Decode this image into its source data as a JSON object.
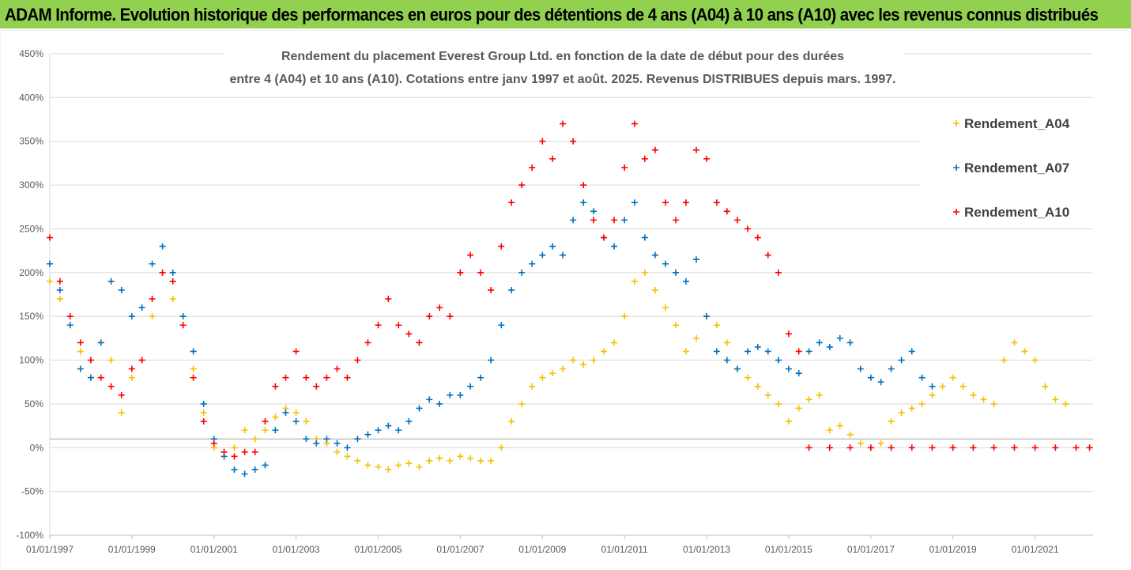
{
  "banner": {
    "title": "ADAM Informe. Evolution historique des performances en euros pour des détentions de 4 ans (A04) à 10 ans (A10) avec les revenus connus distribués",
    "background": "#92d050"
  },
  "chart_data": {
    "type": "scatter",
    "title_line1": "Rendement du placement Everest Group Ltd. en fonction de la date de début pour des durées",
    "title_line2": "entre 4 (A04) et 10 ans (A10). Cotations entre janv 1997 et août. 2025. Revenus DISTRIBUES depuis mars. 1997.",
    "xlabel": "",
    "ylabel": "",
    "x_range": [
      "1997-01-01",
      "2022-06-01"
    ],
    "y_range": [
      -100,
      450
    ],
    "y_step": 50,
    "y_unit": "%",
    "x_ticks": [
      "01/01/1997",
      "01/01/1999",
      "01/01/2001",
      "01/01/2003",
      "01/01/2005",
      "01/01/2007",
      "01/01/2009",
      "01/01/2011",
      "01/01/2013",
      "01/01/2015",
      "01/01/2017",
      "01/01/2019",
      "01/01/2021"
    ],
    "grid": "horizontal",
    "legend_position": "right",
    "marker": "+",
    "series": [
      {
        "name": "Rendement_A04",
        "color": "#f5c000",
        "points": [
          [
            "1997-01-01",
            190
          ],
          [
            "1997-04-01",
            170
          ],
          [
            "1997-07-01",
            140
          ],
          [
            "1997-10-01",
            110
          ],
          [
            "1998-01-01",
            80
          ],
          [
            "1998-04-01",
            120
          ],
          [
            "1998-07-01",
            100
          ],
          [
            "1998-10-01",
            40
          ],
          [
            "1999-01-01",
            80
          ],
          [
            "1999-04-01",
            100
          ],
          [
            "1999-07-01",
            150
          ],
          [
            "1999-10-01",
            200
          ],
          [
            "2000-01-01",
            170
          ],
          [
            "2000-04-01",
            140
          ],
          [
            "2000-07-01",
            90
          ],
          [
            "2000-10-01",
            40
          ],
          [
            "2001-01-01",
            0
          ],
          [
            "2001-04-01",
            -10
          ],
          [
            "2001-07-01",
            0
          ],
          [
            "2001-10-01",
            20
          ],
          [
            "2002-01-01",
            10
          ],
          [
            "2002-04-01",
            20
          ],
          [
            "2002-07-01",
            35
          ],
          [
            "2002-10-01",
            45
          ],
          [
            "2003-01-01",
            40
          ],
          [
            "2003-04-01",
            30
          ],
          [
            "2003-07-01",
            10
          ],
          [
            "2003-10-01",
            5
          ],
          [
            "2004-01-01",
            -5
          ],
          [
            "2004-04-01",
            -10
          ],
          [
            "2004-07-01",
            -15
          ],
          [
            "2004-10-01",
            -20
          ],
          [
            "2005-01-01",
            -22
          ],
          [
            "2005-04-01",
            -25
          ],
          [
            "2005-07-01",
            -20
          ],
          [
            "2005-10-01",
            -18
          ],
          [
            "2006-01-01",
            -22
          ],
          [
            "2006-04-01",
            -15
          ],
          [
            "2006-07-01",
            -12
          ],
          [
            "2006-10-01",
            -15
          ],
          [
            "2007-01-01",
            -10
          ],
          [
            "2007-04-01",
            -12
          ],
          [
            "2007-07-01",
            -15
          ],
          [
            "2007-10-01",
            -15
          ],
          [
            "2008-01-01",
            0
          ],
          [
            "2008-04-01",
            30
          ],
          [
            "2008-07-01",
            50
          ],
          [
            "2008-10-01",
            70
          ],
          [
            "2009-01-01",
            80
          ],
          [
            "2009-04-01",
            85
          ],
          [
            "2009-07-01",
            90
          ],
          [
            "2009-10-01",
            100
          ],
          [
            "2010-01-01",
            95
          ],
          [
            "2010-04-01",
            100
          ],
          [
            "2010-07-01",
            110
          ],
          [
            "2010-10-01",
            120
          ],
          [
            "2011-01-01",
            150
          ],
          [
            "2011-04-01",
            190
          ],
          [
            "2011-07-01",
            200
          ],
          [
            "2011-10-01",
            180
          ],
          [
            "2012-01-01",
            160
          ],
          [
            "2012-04-01",
            140
          ],
          [
            "2012-07-01",
            110
          ],
          [
            "2012-10-01",
            125
          ],
          [
            "2013-01-01",
            150
          ],
          [
            "2013-04-01",
            140
          ],
          [
            "2013-07-01",
            120
          ],
          [
            "2013-10-01",
            90
          ],
          [
            "2014-01-01",
            80
          ],
          [
            "2014-04-01",
            70
          ],
          [
            "2014-07-01",
            60
          ],
          [
            "2014-10-01",
            50
          ],
          [
            "2015-01-01",
            30
          ],
          [
            "2015-04-01",
            45
          ],
          [
            "2015-07-01",
            55
          ],
          [
            "2015-10-01",
            60
          ],
          [
            "2016-01-01",
            20
          ],
          [
            "2016-04-01",
            25
          ],
          [
            "2016-07-01",
            15
          ],
          [
            "2016-10-01",
            5
          ],
          [
            "2017-01-01",
            0
          ],
          [
            "2017-04-01",
            5
          ],
          [
            "2017-07-01",
            30
          ],
          [
            "2017-10-01",
            40
          ],
          [
            "2018-01-01",
            45
          ],
          [
            "2018-04-01",
            50
          ],
          [
            "2018-07-01",
            60
          ],
          [
            "2018-10-01",
            70
          ],
          [
            "2019-01-01",
            80
          ],
          [
            "2019-04-01",
            70
          ],
          [
            "2019-07-01",
            60
          ],
          [
            "2019-10-01",
            55
          ],
          [
            "2020-01-01",
            50
          ],
          [
            "2020-04-01",
            100
          ],
          [
            "2020-07-01",
            120
          ],
          [
            "2020-10-01",
            110
          ],
          [
            "2021-01-01",
            100
          ],
          [
            "2021-04-01",
            70
          ],
          [
            "2021-07-01",
            55
          ],
          [
            "2021-10-01",
            50
          ]
        ]
      },
      {
        "name": "Rendement_A07",
        "color": "#0070c0",
        "points": [
          [
            "1997-01-01",
            210
          ],
          [
            "1997-04-01",
            180
          ],
          [
            "1997-07-01",
            140
          ],
          [
            "1997-10-01",
            90
          ],
          [
            "1998-01-01",
            80
          ],
          [
            "1998-04-01",
            120
          ],
          [
            "1998-07-01",
            190
          ],
          [
            "1998-10-01",
            180
          ],
          [
            "1999-01-01",
            150
          ],
          [
            "1999-04-01",
            160
          ],
          [
            "1999-07-01",
            210
          ],
          [
            "1999-10-01",
            230
          ],
          [
            "2000-01-01",
            200
          ],
          [
            "2000-04-01",
            150
          ],
          [
            "2000-07-01",
            110
          ],
          [
            "2000-10-01",
            50
          ],
          [
            "2001-01-01",
            10
          ],
          [
            "2001-04-01",
            -10
          ],
          [
            "2001-07-01",
            -25
          ],
          [
            "2001-10-01",
            -30
          ],
          [
            "2002-01-01",
            -25
          ],
          [
            "2002-04-01",
            -20
          ],
          [
            "2002-07-01",
            20
          ],
          [
            "2002-10-01",
            40
          ],
          [
            "2003-01-01",
            30
          ],
          [
            "2003-04-01",
            10
          ],
          [
            "2003-07-01",
            5
          ],
          [
            "2003-10-01",
            10
          ],
          [
            "2004-01-01",
            5
          ],
          [
            "2004-04-01",
            0
          ],
          [
            "2004-07-01",
            10
          ],
          [
            "2004-10-01",
            15
          ],
          [
            "2005-01-01",
            20
          ],
          [
            "2005-04-01",
            25
          ],
          [
            "2005-07-01",
            20
          ],
          [
            "2005-10-01",
            30
          ],
          [
            "2006-01-01",
            45
          ],
          [
            "2006-04-01",
            55
          ],
          [
            "2006-07-01",
            50
          ],
          [
            "2006-10-01",
            60
          ],
          [
            "2007-01-01",
            60
          ],
          [
            "2007-04-01",
            70
          ],
          [
            "2007-07-01",
            80
          ],
          [
            "2007-10-01",
            100
          ],
          [
            "2008-01-01",
            140
          ],
          [
            "2008-04-01",
            180
          ],
          [
            "2008-07-01",
            200
          ],
          [
            "2008-10-01",
            210
          ],
          [
            "2009-01-01",
            220
          ],
          [
            "2009-04-01",
            230
          ],
          [
            "2009-07-01",
            220
          ],
          [
            "2009-10-01",
            260
          ],
          [
            "2010-01-01",
            280
          ],
          [
            "2010-04-01",
            270
          ],
          [
            "2010-07-01",
            240
          ],
          [
            "2010-10-01",
            230
          ],
          [
            "2011-01-01",
            260
          ],
          [
            "2011-04-01",
            280
          ],
          [
            "2011-07-01",
            240
          ],
          [
            "2011-10-01",
            220
          ],
          [
            "2012-01-01",
            210
          ],
          [
            "2012-04-01",
            200
          ],
          [
            "2012-07-01",
            190
          ],
          [
            "2012-10-01",
            215
          ],
          [
            "2013-01-01",
            150
          ],
          [
            "2013-04-01",
            110
          ],
          [
            "2013-07-01",
            100
          ],
          [
            "2013-10-01",
            90
          ],
          [
            "2014-01-01",
            110
          ],
          [
            "2014-04-01",
            115
          ],
          [
            "2014-07-01",
            110
          ],
          [
            "2014-10-01",
            100
          ],
          [
            "2015-01-01",
            90
          ],
          [
            "2015-04-01",
            85
          ],
          [
            "2015-07-01",
            110
          ],
          [
            "2015-10-01",
            120
          ],
          [
            "2016-01-01",
            115
          ],
          [
            "2016-04-01",
            125
          ],
          [
            "2016-07-01",
            120
          ],
          [
            "2016-10-01",
            90
          ],
          [
            "2017-01-01",
            80
          ],
          [
            "2017-04-01",
            75
          ],
          [
            "2017-07-01",
            90
          ],
          [
            "2017-10-01",
            100
          ],
          [
            "2018-01-01",
            110
          ],
          [
            "2018-04-01",
            80
          ],
          [
            "2018-07-01",
            70
          ]
        ]
      },
      {
        "name": "Rendement_A10",
        "color": "#ff0000",
        "points": [
          [
            "1997-01-01",
            240
          ],
          [
            "1997-04-01",
            190
          ],
          [
            "1997-07-01",
            150
          ],
          [
            "1997-10-01",
            120
          ],
          [
            "1998-01-01",
            100
          ],
          [
            "1998-04-01",
            80
          ],
          [
            "1998-07-01",
            70
          ],
          [
            "1998-10-01",
            60
          ],
          [
            "1999-01-01",
            90
          ],
          [
            "1999-04-01",
            100
          ],
          [
            "1999-07-01",
            170
          ],
          [
            "1999-10-01",
            200
          ],
          [
            "2000-01-01",
            190
          ],
          [
            "2000-04-01",
            140
          ],
          [
            "2000-07-01",
            80
          ],
          [
            "2000-10-01",
            30
          ],
          [
            "2001-01-01",
            5
          ],
          [
            "2001-04-01",
            -5
          ],
          [
            "2001-07-01",
            -10
          ],
          [
            "2001-10-01",
            -5
          ],
          [
            "2002-01-01",
            -5
          ],
          [
            "2002-04-01",
            30
          ],
          [
            "2002-07-01",
            70
          ],
          [
            "2002-10-01",
            80
          ],
          [
            "2003-01-01",
            110
          ],
          [
            "2003-04-01",
            80
          ],
          [
            "2003-07-01",
            70
          ],
          [
            "2003-10-01",
            80
          ],
          [
            "2004-01-01",
            90
          ],
          [
            "2004-04-01",
            80
          ],
          [
            "2004-07-01",
            100
          ],
          [
            "2004-10-01",
            120
          ],
          [
            "2005-01-01",
            140
          ],
          [
            "2005-04-01",
            170
          ],
          [
            "2005-07-01",
            140
          ],
          [
            "2005-10-01",
            130
          ],
          [
            "2006-01-01",
            120
          ],
          [
            "2006-04-01",
            150
          ],
          [
            "2006-07-01",
            160
          ],
          [
            "2006-10-01",
            150
          ],
          [
            "2007-01-01",
            200
          ],
          [
            "2007-04-01",
            220
          ],
          [
            "2007-07-01",
            200
          ],
          [
            "2007-10-01",
            180
          ],
          [
            "2008-01-01",
            230
          ],
          [
            "2008-04-01",
            280
          ],
          [
            "2008-07-01",
            300
          ],
          [
            "2008-10-01",
            320
          ],
          [
            "2009-01-01",
            350
          ],
          [
            "2009-04-01",
            330
          ],
          [
            "2009-07-01",
            370
          ],
          [
            "2009-10-01",
            350
          ],
          [
            "2010-01-01",
            300
          ],
          [
            "2010-04-01",
            260
          ],
          [
            "2010-07-01",
            240
          ],
          [
            "2010-10-01",
            260
          ],
          [
            "2011-01-01",
            320
          ],
          [
            "2011-04-01",
            370
          ],
          [
            "2011-07-01",
            330
          ],
          [
            "2011-10-01",
            340
          ],
          [
            "2012-01-01",
            280
          ],
          [
            "2012-04-01",
            260
          ],
          [
            "2012-07-01",
            280
          ],
          [
            "2012-10-01",
            340
          ],
          [
            "2013-01-01",
            330
          ],
          [
            "2013-04-01",
            280
          ],
          [
            "2013-07-01",
            270
          ],
          [
            "2013-10-01",
            260
          ],
          [
            "2014-01-01",
            250
          ],
          [
            "2014-04-01",
            240
          ],
          [
            "2014-07-01",
            220
          ],
          [
            "2014-10-01",
            200
          ],
          [
            "2015-01-01",
            130
          ],
          [
            "2015-04-01",
            110
          ],
          [
            "2015-07-01",
            0
          ],
          [
            "2016-01-01",
            0
          ],
          [
            "2016-07-01",
            0
          ],
          [
            "2017-01-01",
            0
          ],
          [
            "2017-07-01",
            0
          ],
          [
            "2018-01-01",
            0
          ],
          [
            "2018-07-01",
            0
          ],
          [
            "2019-01-01",
            0
          ],
          [
            "2019-07-01",
            0
          ],
          [
            "2020-01-01",
            0
          ],
          [
            "2020-07-01",
            0
          ],
          [
            "2021-01-01",
            0
          ],
          [
            "2021-07-01",
            0
          ],
          [
            "2022-01-01",
            0
          ],
          [
            "2022-05-01",
            0
          ]
        ]
      }
    ]
  }
}
